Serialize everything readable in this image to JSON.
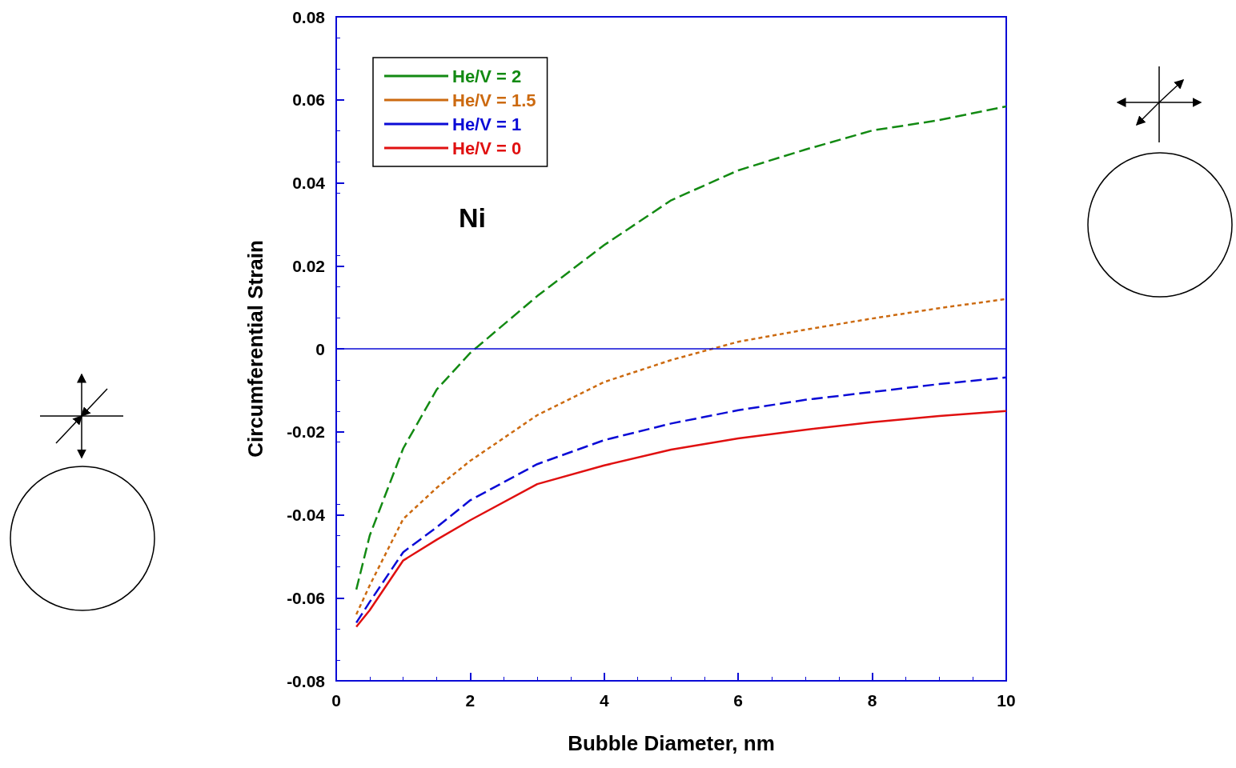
{
  "chart_data": {
    "type": "line",
    "xlabel": "Bubble Diameter, nm",
    "ylabel": "Circumferential Strain",
    "xlim": [
      0,
      10
    ],
    "xticks": [
      0,
      2,
      4,
      6,
      8,
      10
    ],
    "ylim": [
      -0.08,
      0.08
    ],
    "yticks": [
      -0.08,
      -0.06,
      -0.04,
      -0.02,
      0,
      0.02,
      0.04,
      0.06,
      0.08
    ],
    "x": [
      0.3,
      0.5,
      1,
      1.5,
      2,
      3,
      4,
      5,
      6,
      7,
      8,
      9,
      10
    ],
    "series": [
      {
        "name": "He/V = 2",
        "color": "#138a13",
        "line_style": "dashed",
        "values": [
          -0.058,
          -0.045,
          -0.024,
          -0.0098,
          -0.001,
          0.0127,
          0.025,
          0.0358,
          0.043,
          0.048,
          0.0526,
          0.0551,
          0.0584
        ]
      },
      {
        "name": "He/V = 1.5",
        "color": "#cc6a10",
        "line_style": "dotted",
        "values": [
          -0.064,
          -0.057,
          -0.041,
          -0.0335,
          -0.027,
          -0.016,
          -0.008,
          -0.0027,
          0.0017,
          0.0046,
          0.0073,
          0.0098,
          0.012
        ]
      },
      {
        "name": "He/V = 1",
        "color": "#0b0bd6",
        "line_style": "dashed",
        "values": [
          -0.066,
          -0.061,
          -0.049,
          -0.043,
          -0.0365,
          -0.0278,
          -0.022,
          -0.018,
          -0.0148,
          -0.0123,
          -0.0104,
          -0.0085,
          -0.0069
        ]
      },
      {
        "name": "He/V = 0",
        "color": "#e01010",
        "line_style": "solid",
        "values": [
          -0.067,
          -0.063,
          -0.051,
          -0.046,
          -0.0413,
          -0.0326,
          -0.0281,
          -0.0243,
          -0.0216,
          -0.0195,
          -0.0177,
          -0.0162,
          -0.015
        ]
      }
    ],
    "ref_lines": [
      {
        "axis": "y",
        "value": 0,
        "color": "#0b0bd6"
      }
    ],
    "annotations": [
      "Ni"
    ],
    "legend": "top left",
    "grid": false,
    "marker": "none"
  }
}
